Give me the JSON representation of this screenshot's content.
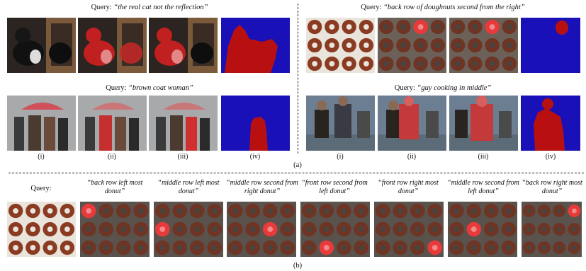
{
  "part_a": {
    "queries": [
      {
        "prefix": "Query: ",
        "text": "“the real cat not the reflection”"
      },
      {
        "prefix": "Query: ",
        "text": "“back row of doughnuts second from the right”"
      },
      {
        "prefix": "Query: ",
        "text": "“brown coat woman”"
      },
      {
        "prefix": "Query: ",
        "text": "“guy cooking in middle”"
      }
    ],
    "column_labels": [
      "(i)",
      "(ii)",
      "(iii)",
      "(iv)"
    ],
    "caption": "(a)"
  },
  "part_b": {
    "query_label": "Query:",
    "queries": [
      "“back row left most donut”",
      "“middle row left most donut”",
      "“middle row second from right donut”",
      "“front row second from left donut”",
      "“front row right most donut”",
      "“middle row second from left donut”",
      "“back row right most donut”"
    ],
    "caption": "(b)"
  },
  "colors": {
    "mask_background": "#1a10b8",
    "mask_foreground": "#b81010",
    "highlight": "#e83a3a",
    "donut": "#8a3b22"
  }
}
